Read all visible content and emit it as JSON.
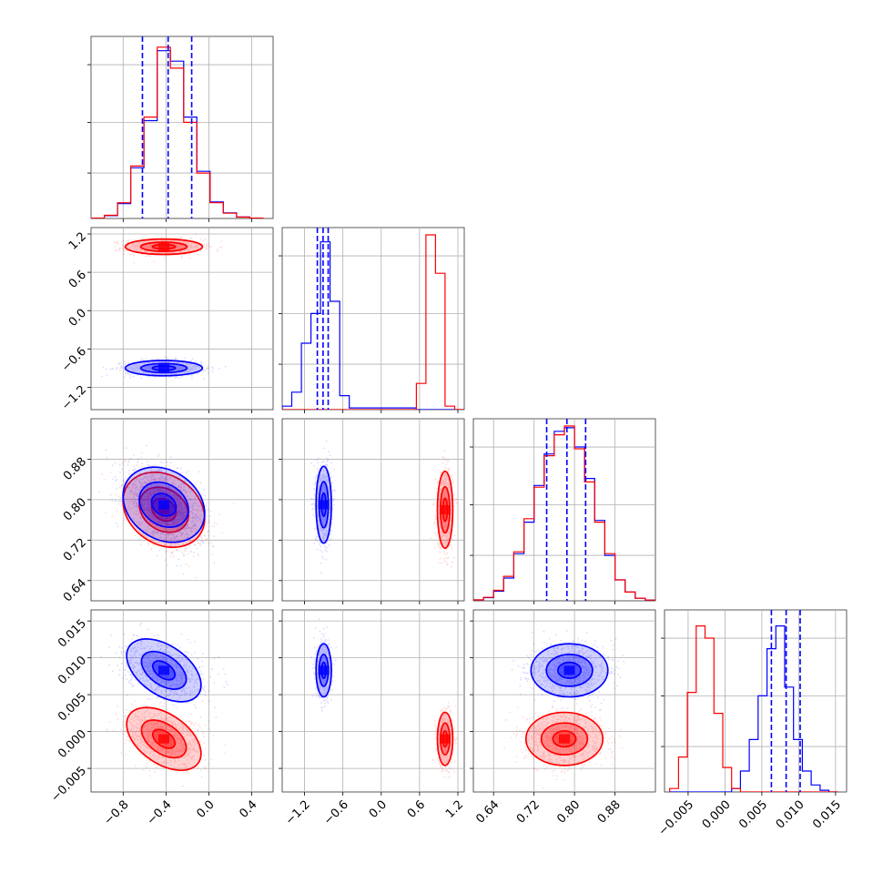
{
  "chart_data": {
    "type": "corner",
    "parameters": 4,
    "colors": {
      "red": "#ff0000",
      "blue": "#0000ff"
    },
    "grid": true,
    "axes": [
      {
        "ticks": [
          -0.8,
          -0.4,
          0.0,
          0.4
        ],
        "labels": [
          "−0.8",
          "−0.4",
          "0.0",
          "0.4"
        ]
      },
      {
        "ticks": [
          -1.2,
          -0.6,
          0.0,
          0.6,
          1.2
        ],
        "labels": [
          "−1.2",
          "−0.6",
          "0.0",
          "0.6",
          "1.2"
        ]
      },
      {
        "ticks": [
          0.64,
          0.72,
          0.8,
          0.88
        ],
        "labels": [
          "0.64",
          "0.72",
          "0.80",
          "0.88"
        ]
      },
      {
        "ticks": [
          -0.005,
          0.0,
          0.005,
          0.01,
          0.015
        ],
        "labels": [
          "−0.005",
          "0.000",
          "0.005",
          "0.010",
          "0.015"
        ]
      }
    ],
    "series": [
      {
        "color": "red",
        "mean": [
          -0.42,
          1.0,
          0.78,
          -0.001
        ],
        "sd": [
          0.18,
          0.06,
          0.038,
          0.0018
        ]
      },
      {
        "color": "blue",
        "mean": [
          -0.42,
          -0.9,
          0.79,
          0.0083
        ],
        "sd": [
          0.18,
          0.06,
          0.038,
          0.0018
        ]
      }
    ],
    "quantile_lines": [
      [
        -0.62,
        -0.38,
        -0.16
      ],
      [
        -1.0,
        -0.91,
        -0.83
      ],
      [
        0.745,
        0.785,
        0.822
      ],
      [
        0.0063,
        0.0083,
        0.0102
      ]
    ],
    "hist1d": [
      {
        "bins": [
          -1.1,
          -0.976,
          -0.853,
          -0.729,
          -0.606,
          -0.482,
          -0.359,
          -0.235,
          -0.112,
          0.012,
          0.135,
          0.259,
          0.382,
          0.506
        ],
        "red": [
          0.002,
          0.018,
          0.09,
          0.3,
          0.58,
          0.98,
          0.86,
          0.55,
          0.26,
          0.09,
          0.03,
          0.008,
          0.002
        ],
        "blue": [
          0.002,
          0.016,
          0.085,
          0.29,
          0.56,
          0.96,
          0.9,
          0.58,
          0.27,
          0.095,
          0.032,
          0.009,
          0.002
        ]
      },
      {
        "bins": [
          -1.55,
          -1.4,
          -1.25,
          -1.1,
          -0.95,
          -0.8,
          -0.65,
          -0.5,
          0.55,
          0.7,
          0.85,
          1.0,
          1.15,
          1.3
        ],
        "red": [
          0,
          0,
          0,
          0,
          0,
          0,
          0,
          0,
          0.15,
          1.0,
          0.78,
          0.02,
          0
        ],
        "blue": [
          0.02,
          0.1,
          0.38,
          0.55,
          0.96,
          0.62,
          0.08,
          0.01,
          0,
          0,
          0,
          0,
          0
        ]
      },
      {
        "bins": [
          0.6,
          0.62,
          0.64,
          0.66,
          0.68,
          0.7,
          0.72,
          0.74,
          0.76,
          0.78,
          0.8,
          0.82,
          0.84,
          0.86,
          0.88,
          0.9,
          0.92,
          0.94,
          0.96
        ],
        "red": [
          0.005,
          0.02,
          0.06,
          0.14,
          0.28,
          0.47,
          0.65,
          0.83,
          0.95,
          1.0,
          0.87,
          0.68,
          0.45,
          0.27,
          0.12,
          0.05,
          0.015,
          0.004
        ],
        "blue": [
          0.005,
          0.018,
          0.055,
          0.13,
          0.27,
          0.45,
          0.66,
          0.84,
          0.97,
          0.99,
          0.88,
          0.7,
          0.46,
          0.26,
          0.12,
          0.05,
          0.015,
          0.004
        ]
      },
      {
        "bins": [
          -0.0075,
          -0.0063,
          -0.0051,
          -0.0039,
          -0.0027,
          -0.0015,
          -0.0003,
          0.0009,
          0.0021,
          0.0033,
          0.0045,
          0.0057,
          0.0069,
          0.0081,
          0.0093,
          0.0105,
          0.0117,
          0.0129,
          0.0141,
          0.0153
        ],
        "red": [
          0.02,
          0.2,
          0.57,
          0.95,
          0.88,
          0.45,
          0.14,
          0.02,
          0,
          0,
          0,
          0,
          0,
          0,
          0,
          0,
          0,
          0,
          0
        ],
        "blue": [
          0,
          0,
          0,
          0,
          0,
          0,
          0,
          0.02,
          0.12,
          0.3,
          0.55,
          0.82,
          0.95,
          0.6,
          0.3,
          0.12,
          0.04,
          0.01,
          0
        ]
      }
    ]
  }
}
